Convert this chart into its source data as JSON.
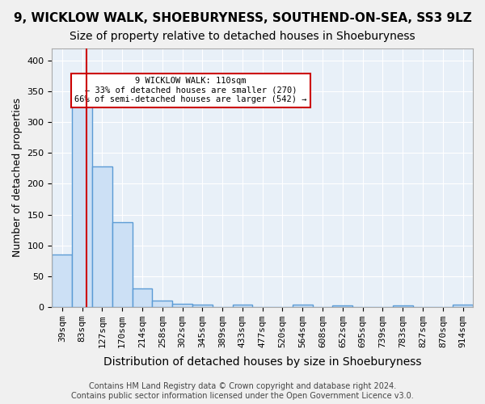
{
  "title": "9, WICKLOW WALK, SHOEBURYNESS, SOUTHEND-ON-SEA, SS3 9LZ",
  "subtitle": "Size of property relative to detached houses in Shoeburyness",
  "xlabel": "Distribution of detached houses by size in Shoeburyness",
  "ylabel": "Number of detached properties",
  "bin_labels": [
    "39sqm",
    "83sqm",
    "127sqm",
    "170sqm",
    "214sqm",
    "258sqm",
    "302sqm",
    "345sqm",
    "389sqm",
    "433sqm",
    "477sqm",
    "520sqm",
    "564sqm",
    "608sqm",
    "652sqm",
    "695sqm",
    "739sqm",
    "783sqm",
    "827sqm",
    "870sqm",
    "914sqm"
  ],
  "bar_values": [
    85,
    340,
    228,
    137,
    30,
    10,
    5,
    4,
    0,
    4,
    0,
    0,
    4,
    0,
    2,
    0,
    0,
    2,
    0,
    0,
    3
  ],
  "bar_color": "#cce0f5",
  "bar_edge_color": "#5b9bd5",
  "bar_edge_width": 1.0,
  "red_line_x": 1.72,
  "annotation_text": "9 WICKLOW WALK: 110sqm\n← 33% of detached houses are smaller (270)\n66% of semi-detached houses are larger (542) →",
  "annotation_box_color": "#ffffff",
  "annotation_box_edge_color": "#cc0000",
  "ylim": [
    0,
    420
  ],
  "yticks": [
    0,
    50,
    100,
    150,
    200,
    250,
    300,
    350,
    400
  ],
  "footer": "Contains HM Land Registry data © Crown copyright and database right 2024.\nContains public sector information licensed under the Open Government Licence v3.0.",
  "background_color": "#e8f0f8",
  "grid_color": "#ffffff",
  "title_fontsize": 11,
  "subtitle_fontsize": 10,
  "axis_label_fontsize": 9,
  "tick_fontsize": 8,
  "footer_fontsize": 7
}
